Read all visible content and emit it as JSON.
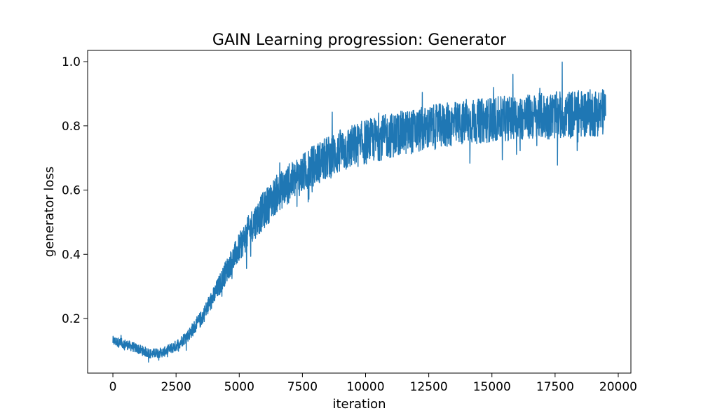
{
  "chart_data": {
    "type": "line",
    "title": "GAIN Learning progression: Generator",
    "xlabel": "iteration",
    "ylabel": "generator loss",
    "xlim": [
      -1000,
      20500
    ],
    "ylim": [
      0.03,
      1.035
    ],
    "xticks": [
      0,
      2500,
      5000,
      7500,
      10000,
      12500,
      15000,
      17500,
      20000
    ],
    "xtick_labels": [
      "0",
      "2500",
      "5000",
      "7500",
      "10000",
      "12500",
      "15000",
      "17500",
      "20000"
    ],
    "yticks": [
      0.2,
      0.4,
      0.6,
      0.8,
      1.0
    ],
    "ytick_labels": [
      "0.2",
      "0.4",
      "0.6",
      "0.8",
      "1.0"
    ],
    "grid": false,
    "legend": "none",
    "series": [
      {
        "color": "#1f77b4",
        "trend": {
          "x": [
            0,
            500,
            1000,
            1500,
            2000,
            2500,
            3000,
            3500,
            4000,
            4500,
            5000,
            5500,
            6000,
            6500,
            7000,
            7500,
            8000,
            8500,
            9000,
            9500,
            10000,
            11000,
            12000,
            13000,
            14000,
            15000,
            16000,
            17000,
            18000,
            19000,
            19500
          ],
          "y": [
            0.13,
            0.12,
            0.105,
            0.09,
            0.095,
            0.115,
            0.15,
            0.2,
            0.27,
            0.35,
            0.42,
            0.49,
            0.54,
            0.59,
            0.62,
            0.65,
            0.68,
            0.7,
            0.72,
            0.735,
            0.75,
            0.77,
            0.785,
            0.8,
            0.81,
            0.82,
            0.825,
            0.83,
            0.835,
            0.84,
            0.845
          ]
        },
        "band": {
          "x": [
            0,
            1000,
            2000,
            3000,
            4000,
            5000,
            6000,
            7000,
            8000,
            9000,
            10000,
            12000,
            14000,
            16000,
            18000,
            19500
          ],
          "half_width": [
            0.015,
            0.015,
            0.015,
            0.02,
            0.03,
            0.045,
            0.06,
            0.06,
            0.065,
            0.07,
            0.07,
            0.07,
            0.07,
            0.07,
            0.075,
            0.075
          ]
        },
        "n_points": 19500
      }
    ]
  }
}
